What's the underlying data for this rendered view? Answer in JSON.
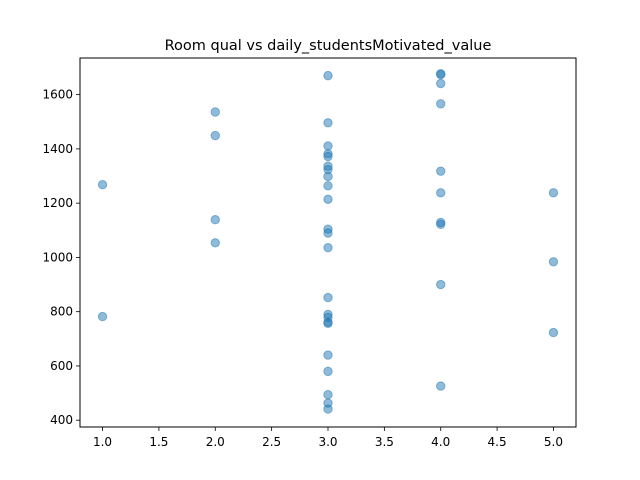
{
  "chart_data": {
    "type": "scatter",
    "title": "Room qual vs daily_studentsMotivated_value",
    "xlabel": "",
    "ylabel": "",
    "xlim": [
      0.8,
      5.2
    ],
    "ylim": [
      375,
      1735
    ],
    "xticks": [
      1.0,
      1.5,
      2.0,
      2.5,
      3.0,
      3.5,
      4.0,
      4.5,
      5.0
    ],
    "xtick_labels": [
      "1.0",
      "1.5",
      "2.0",
      "2.5",
      "3.0",
      "3.5",
      "4.0",
      "4.5",
      "5.0"
    ],
    "yticks": [
      400,
      600,
      800,
      1000,
      1200,
      1400,
      1600
    ],
    "ytick_labels": [
      "400",
      "600",
      "800",
      "1000",
      "1200",
      "1400",
      "1600"
    ],
    "grid": false,
    "marker_color": "#1f77b4",
    "marker_alpha": 0.5,
    "points": [
      {
        "x": 1,
        "y": 1268
      },
      {
        "x": 1,
        "y": 782
      },
      {
        "x": 2,
        "y": 1536
      },
      {
        "x": 2,
        "y": 1449
      },
      {
        "x": 2,
        "y": 1139
      },
      {
        "x": 2,
        "y": 1054
      },
      {
        "x": 3,
        "y": 1670
      },
      {
        "x": 3,
        "y": 1496
      },
      {
        "x": 3,
        "y": 1411
      },
      {
        "x": 3,
        "y": 1382
      },
      {
        "x": 3,
        "y": 1372
      },
      {
        "x": 3,
        "y": 1336
      },
      {
        "x": 3,
        "y": 1324
      },
      {
        "x": 3,
        "y": 1298
      },
      {
        "x": 3,
        "y": 1264
      },
      {
        "x": 3,
        "y": 1214
      },
      {
        "x": 3,
        "y": 1104
      },
      {
        "x": 3,
        "y": 1090
      },
      {
        "x": 3,
        "y": 1036
      },
      {
        "x": 3,
        "y": 852
      },
      {
        "x": 3,
        "y": 790
      },
      {
        "x": 3,
        "y": 779
      },
      {
        "x": 3,
        "y": 761
      },
      {
        "x": 3,
        "y": 757
      },
      {
        "x": 3,
        "y": 640
      },
      {
        "x": 3,
        "y": 580
      },
      {
        "x": 3,
        "y": 494
      },
      {
        "x": 3,
        "y": 463
      },
      {
        "x": 3,
        "y": 441
      },
      {
        "x": 4,
        "y": 1677
      },
      {
        "x": 4,
        "y": 1674
      },
      {
        "x": 4,
        "y": 1641
      },
      {
        "x": 4,
        "y": 1566
      },
      {
        "x": 4,
        "y": 1318
      },
      {
        "x": 4,
        "y": 1238
      },
      {
        "x": 4,
        "y": 1129
      },
      {
        "x": 4,
        "y": 1122
      },
      {
        "x": 4,
        "y": 900
      },
      {
        "x": 4,
        "y": 526
      },
      {
        "x": 5,
        "y": 1238
      },
      {
        "x": 5,
        "y": 984
      },
      {
        "x": 5,
        "y": 723
      }
    ]
  }
}
